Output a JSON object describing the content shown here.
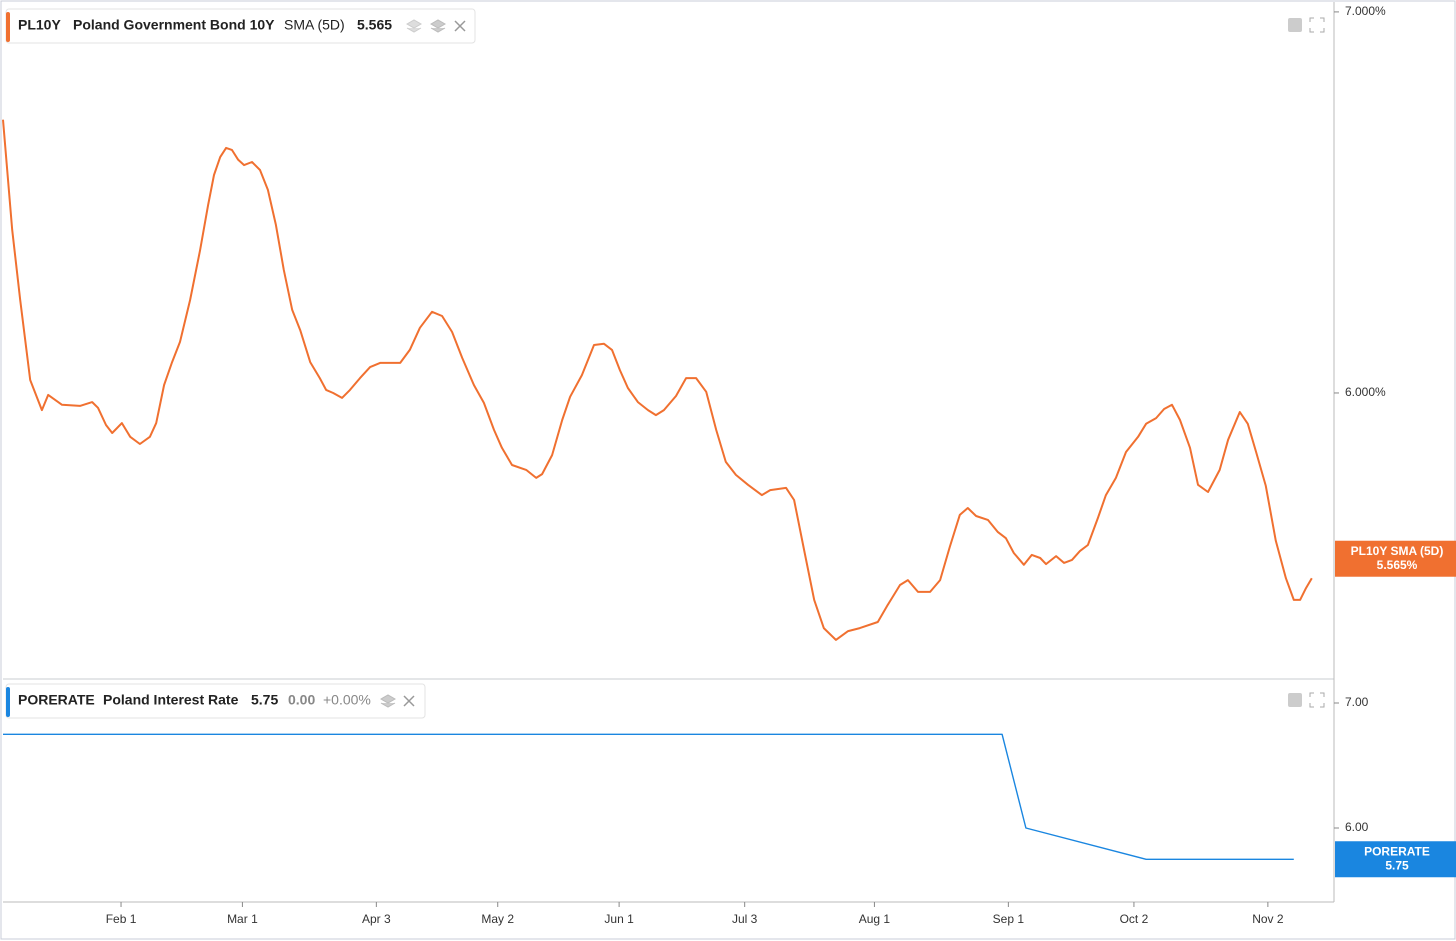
{
  "chart_data": [
    {
      "type": "line",
      "symbol": "PL10Y",
      "title": "Poland Government Bond 10Y",
      "indicator": "SMA (5D)",
      "last_value": 5.565,
      "last_value_label": "5.565%",
      "xlim": [
        2.8,
        320.8
      ],
      "ylim": [
        5.252,
        7.026
      ],
      "yticks": [
        {
          "value": 7,
          "label": "7.000%"
        },
        {
          "value": 6,
          "label": "6.000%"
        }
      ],
      "series": [
        {
          "name": "PL10Y SMA (5D)",
          "color": "#f07030",
          "x": [
            2.8,
            5.0,
            6.9,
            9.3,
            12.1,
            13.6,
            16.9,
            21.2,
            24.1,
            25.5,
            27.4,
            28.9,
            31.2,
            33.2,
            35.5,
            37.9,
            39.4,
            41.3,
            43.2,
            45.1,
            47.5,
            49.9,
            51.8,
            53.2,
            54.7,
            56.1,
            57.5,
            59.0,
            60.4,
            62.3,
            64.2,
            66.1,
            68.0,
            69.9,
            71.9,
            73.8,
            76.2,
            78.5,
            80.0,
            81.7,
            83.8,
            85.7,
            88.1,
            90.5,
            92.9,
            97.7,
            100.0,
            102.4,
            105.3,
            107.7,
            110.1,
            112.5,
            115.3,
            117.7,
            120.1,
            122.0,
            124.4,
            127.8,
            130.2,
            131.6,
            134.0,
            136.4,
            138.3,
            141.1,
            144.0,
            146.4,
            148.3,
            150.2,
            152.1,
            154.5,
            156.9,
            158.8,
            160.7,
            163.6,
            166.0,
            168.4,
            170.8,
            173.2,
            175.5,
            177.9,
            180.8,
            184.1,
            186.1,
            189.9,
            191.8,
            194.2,
            196.6,
            198.9,
            201.8,
            204.7,
            207.5,
            211.8,
            214.2,
            217.1,
            219.0,
            221.4,
            224.3,
            226.7,
            229.0,
            231.4,
            233.3,
            235.3,
            238.1,
            240.5,
            242.4,
            244.3,
            246.7,
            248.6,
            250.6,
            252.0,
            254.4,
            256.3,
            258.2,
            260.1,
            262.0,
            264.4,
            266.3,
            268.7,
            271.1,
            274.0,
            275.9,
            278.3,
            280.2,
            282.1,
            284.0,
            286.4,
            288.3,
            290.7,
            293.5,
            295.5,
            298.3,
            300.2,
            302.2,
            304.5,
            306.9,
            309.3,
            311.2,
            312.7,
            314.1,
            315.5
          ],
          "values": [
            6.717,
            6.428,
            6.244,
            6.034,
            5.955,
            5.995,
            5.969,
            5.966,
            5.976,
            5.961,
            5.916,
            5.895,
            5.921,
            5.885,
            5.866,
            5.885,
            5.921,
            6.021,
            6.081,
            6.134,
            6.244,
            6.375,
            6.493,
            6.572,
            6.619,
            6.643,
            6.638,
            6.612,
            6.598,
            6.606,
            6.585,
            6.533,
            6.441,
            6.323,
            6.218,
            6.165,
            6.081,
            6.039,
            6.008,
            6.0,
            5.987,
            6.008,
            6.039,
            6.068,
            6.079,
            6.079,
            6.113,
            6.171,
            6.213,
            6.202,
            6.16,
            6.092,
            6.021,
            5.974,
            5.903,
            5.856,
            5.811,
            5.798,
            5.777,
            5.787,
            5.837,
            5.929,
            5.99,
            6.047,
            6.126,
            6.129,
            6.113,
            6.06,
            6.013,
            5.976,
            5.955,
            5.942,
            5.955,
            5.992,
            6.039,
            6.039,
            6.003,
            5.903,
            5.819,
            5.785,
            5.759,
            5.732,
            5.745,
            5.751,
            5.719,
            5.588,
            5.457,
            5.383,
            5.352,
            5.375,
            5.383,
            5.399,
            5.444,
            5.496,
            5.509,
            5.478,
            5.478,
            5.509,
            5.596,
            5.68,
            5.698,
            5.677,
            5.667,
            5.635,
            5.619,
            5.58,
            5.549,
            5.575,
            5.567,
            5.551,
            5.572,
            5.554,
            5.562,
            5.585,
            5.601,
            5.672,
            5.732,
            5.777,
            5.845,
            5.885,
            5.919,
            5.934,
            5.958,
            5.969,
            5.929,
            5.856,
            5.759,
            5.74,
            5.798,
            5.877,
            5.95,
            5.919,
            5.845,
            5.756,
            5.612,
            5.514,
            5.457,
            5.457,
            5.488,
            5.514
          ]
        }
      ]
    },
    {
      "type": "line",
      "title": "Poland Interest Rate",
      "last_value": 5.75,
      "change": 0,
      "change_label": "0.00",
      "change_pct": 0,
      "change_pct_label": "+0.00%",
      "xlim": [
        2.8,
        320.8
      ],
      "ylim": [
        5.408,
        7.184
      ],
      "yticks": [
        {
          "value": 7,
          "label": "7.00"
        },
        {
          "value": 6,
          "label": "6.00"
        }
      ],
      "xticks": [
        {
          "value": 31,
          "label": "Feb 1"
        },
        {
          "value": 60,
          "label": "Mar 1"
        },
        {
          "value": 92,
          "label": "Apr 3"
        },
        {
          "value": 121,
          "label": "May 2"
        },
        {
          "value": 150,
          "label": "Jun 1"
        },
        {
          "value": 180,
          "label": "Jul 3"
        },
        {
          "value": 211,
          "label": "Aug 1"
        },
        {
          "value": 243,
          "label": "Sep 1"
        },
        {
          "value": 273,
          "label": "Oct 2"
        },
        {
          "value": 305,
          "label": "Nov 2"
        }
      ],
      "series": [
        {
          "name": "PORERATE",
          "color": "#1a86e0",
          "x": [
            2.8,
            241.5,
            247.2,
            275.9,
            311.2
          ],
          "values": [
            6.75,
            6.75,
            6.0,
            5.75,
            5.75
          ]
        }
      ]
    }
  ]
}
